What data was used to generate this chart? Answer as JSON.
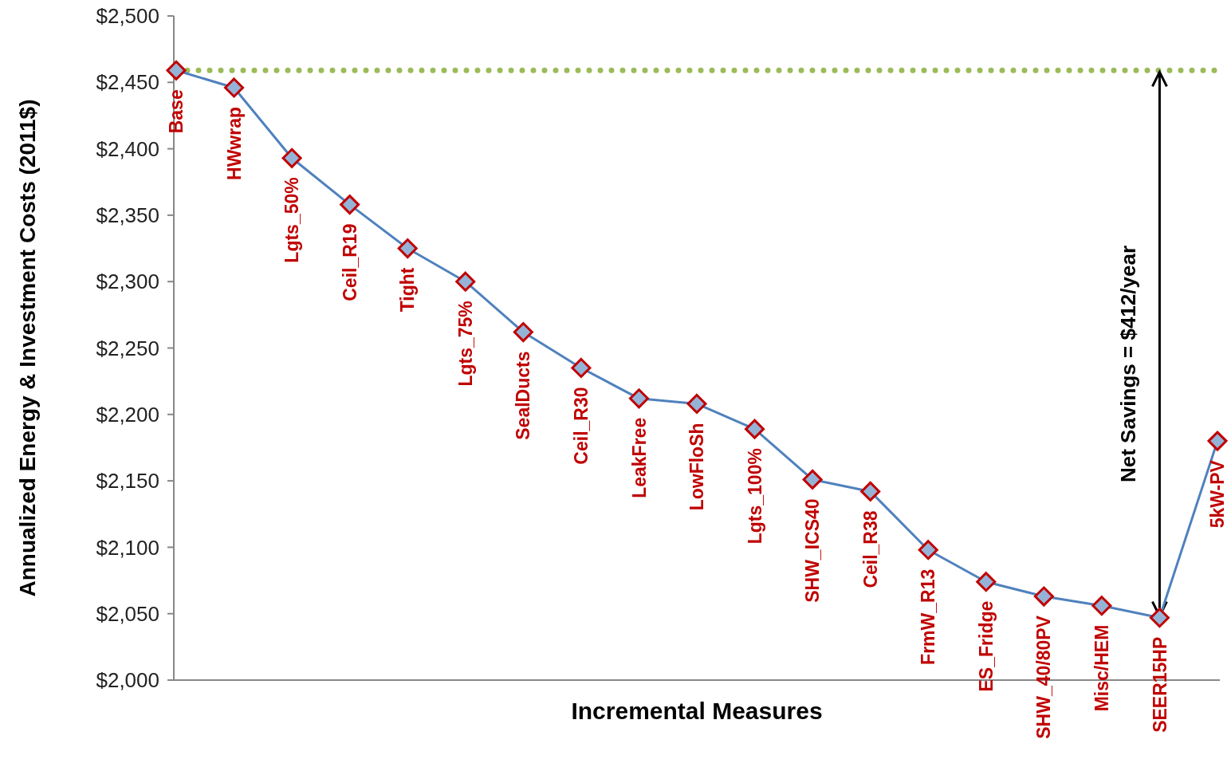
{
  "chart_data": {
    "type": "line",
    "xlabel": "Incremental Measures",
    "ylabel": "Annualized Energy & Investment Costs (2011$)",
    "categories": [
      "Base",
      "HWwrap",
      "Lgts_50%",
      "Ceil_R19",
      "Tight",
      "Lgts_75%",
      "SealDucts",
      "Ceil_R30",
      "LeakFree",
      "LowFloSh",
      "Lgts_100%",
      "SHW_ICS40",
      "Ceil_R38",
      "FrmW_R13",
      "ES_Fridge",
      "SHW_40/80PV",
      "Misc/HEM",
      "SEER15HP",
      "5kW-PV"
    ],
    "series": [
      {
        "color": "#4f81bd",
        "values": [
          2459,
          2446,
          2393,
          2358,
          2325,
          2300,
          2262,
          2235,
          2212,
          2208,
          2189,
          2151,
          2142,
          2098,
          2074,
          2063,
          2056,
          2047,
          2180
        ]
      }
    ],
    "marker": "diamond",
    "line_style": "solid",
    "ylim": [
      2000,
      2500
    ],
    "yticks": [
      {
        "value": 2000,
        "label": "$2,000"
      },
      {
        "value": 2050,
        "label": "$2,050"
      },
      {
        "value": 2100,
        "label": "$2,100"
      },
      {
        "value": 2150,
        "label": "$2,150"
      },
      {
        "value": 2200,
        "label": "$2,200"
      },
      {
        "value": 2250,
        "label": "$2,250"
      },
      {
        "value": 2300,
        "label": "$2,300"
      },
      {
        "value": 2350,
        "label": "$2,350"
      },
      {
        "value": 2400,
        "label": "$2,400"
      },
      {
        "value": 2450,
        "label": "$2,450"
      },
      {
        "value": 2500,
        "label": "$2,500"
      }
    ],
    "ref_lines": [
      {
        "axis": "y",
        "value": 2459,
        "color": "#9bbb59",
        "line_style": "dotted"
      }
    ],
    "annotations": [
      "Net Savings = $412/year"
    ]
  }
}
